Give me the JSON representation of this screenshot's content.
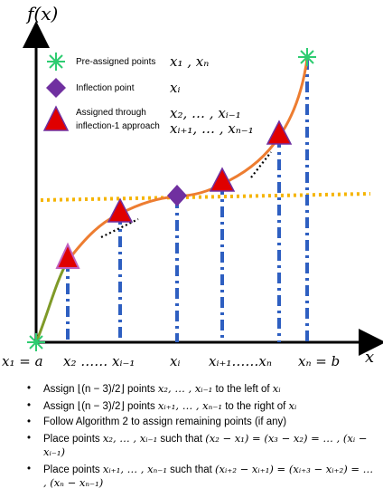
{
  "axes": {
    "y_label": "f(x)",
    "x_label": "x"
  },
  "legend": [
    {
      "label": "Pre-assigned points",
      "math": "x₁ , xₙ",
      "marker": "star",
      "color": "#2ecc71"
    },
    {
      "label": "Inflection point",
      "math": "xᵢ",
      "marker": "diamond",
      "color": "#7030a0"
    },
    {
      "label": "Assigned through inflection-1 approach",
      "math_line1": "x₂, … , xᵢ₋₁",
      "math_line2": "xᵢ₊₁, … , xₙ₋₁",
      "marker": "triangle",
      "color": "#e00000"
    }
  ],
  "legend_label_line1": "Assigned through",
  "legend_label_line2": "inflection-1 approach",
  "x_ticks": {
    "x1": "x₁ = a",
    "x2": "x₂ ……  xᵢ₋₁",
    "xi": "xᵢ",
    "xi1": "xᵢ₊₁……xₙ",
    "xn": "xₙ = b"
  },
  "bullets": [
    [
      "Assign ",
      "⌊(n − 3)/2⌋",
      " points ",
      "x₂, … , xᵢ₋₁",
      " to the left of ",
      "xᵢ"
    ],
    [
      "Assign ",
      "⌊(n − 3)/2⌋",
      " points ",
      "xᵢ₊₁, … , xₙ₋₁",
      " to the right of ",
      "xᵢ"
    ],
    [
      "Follow Algorithm 2 to assign remaining points (if any)"
    ],
    [
      "Place points ",
      "x₂, … , xᵢ₋₁",
      " such that ",
      "(x₂ − x₁) = (x₃ − x₂) = … , (xᵢ − xᵢ₋₁)"
    ],
    [
      "Place points ",
      "xᵢ₊₁, … , xₙ₋₁",
      " such that ",
      "(xᵢ₊₂ − xᵢ₊₁) = (xᵢ₊₃ − xᵢ₊₂) = … , (xₙ − xₙ₋₁)"
    ]
  ]
}
